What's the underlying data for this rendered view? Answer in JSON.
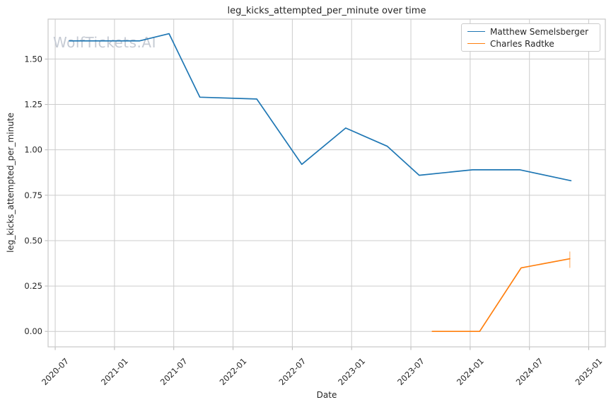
{
  "watermark": "WolfTickets.AI",
  "chart_data": {
    "type": "line",
    "title": "leg_kicks_attempted_per_minute over time",
    "xlabel": "Date",
    "ylabel": "leg_kicks_attempted_per_minute",
    "grid": true,
    "legend_position": "upper right",
    "xlim": [
      2020.44,
      2025.14
    ],
    "ylim": [
      -0.085,
      1.72
    ],
    "x_ticks": {
      "values": [
        2020.5,
        2021.0,
        2021.5,
        2022.0,
        2022.5,
        2023.0,
        2023.5,
        2024.0,
        2024.5,
        2025.0
      ],
      "labels": [
        "2020-07",
        "2021-01",
        "2021-07",
        "2022-01",
        "2022-07",
        "2023-01",
        "2023-07",
        "2024-01",
        "2024-07",
        "2025-01"
      ]
    },
    "y_ticks": {
      "values": [
        0,
        0.25,
        0.5,
        0.75,
        1.0,
        1.25,
        1.5
      ],
      "labels": [
        "0.00",
        "0.25",
        "0.50",
        "0.75",
        "1.00",
        "1.25",
        "1.50"
      ]
    },
    "series": [
      {
        "name": "Matthew Semelsberger",
        "color": "#1f77b4",
        "dates": [
          "2020-08",
          "2021-03",
          "2021-06",
          "2021-09",
          "2022-03",
          "2022-08",
          "2022-12",
          "2023-04",
          "2023-08",
          "2024-01",
          "2024-06",
          "2024-11"
        ],
        "x": [
          2020.62,
          2021.21,
          2021.46,
          2021.72,
          2022.2,
          2022.58,
          2022.95,
          2023.3,
          2023.57,
          2024.02,
          2024.42,
          2024.85
        ],
        "y": [
          1.6,
          1.6,
          1.64,
          1.29,
          1.28,
          0.92,
          1.12,
          1.02,
          0.86,
          0.89,
          0.89,
          0.83
        ]
      },
      {
        "name": "Charles Radtke",
        "color": "#ff7f0e",
        "dates": [
          "2023-09",
          "2024-01",
          "2024-06",
          "2024-11"
        ],
        "x": [
          2023.68,
          2024.08,
          2024.43,
          2024.84
        ],
        "y": [
          0.0,
          0.0,
          0.35,
          0.4
        ],
        "error_bar_at_last_point": {
          "y_low": 0.35,
          "y_high": 0.44
        }
      }
    ]
  },
  "colors": {
    "blue": "#1f77b4",
    "orange": "#ff7f0e",
    "grid": "#cccccc",
    "spine": "#c9c9c9",
    "tick": "#b5b5b5",
    "text": "#262626",
    "watermark": "#c6cbd4",
    "error_bar": "rgba(255,127,14,0.45)",
    "background": "#ffffff"
  }
}
